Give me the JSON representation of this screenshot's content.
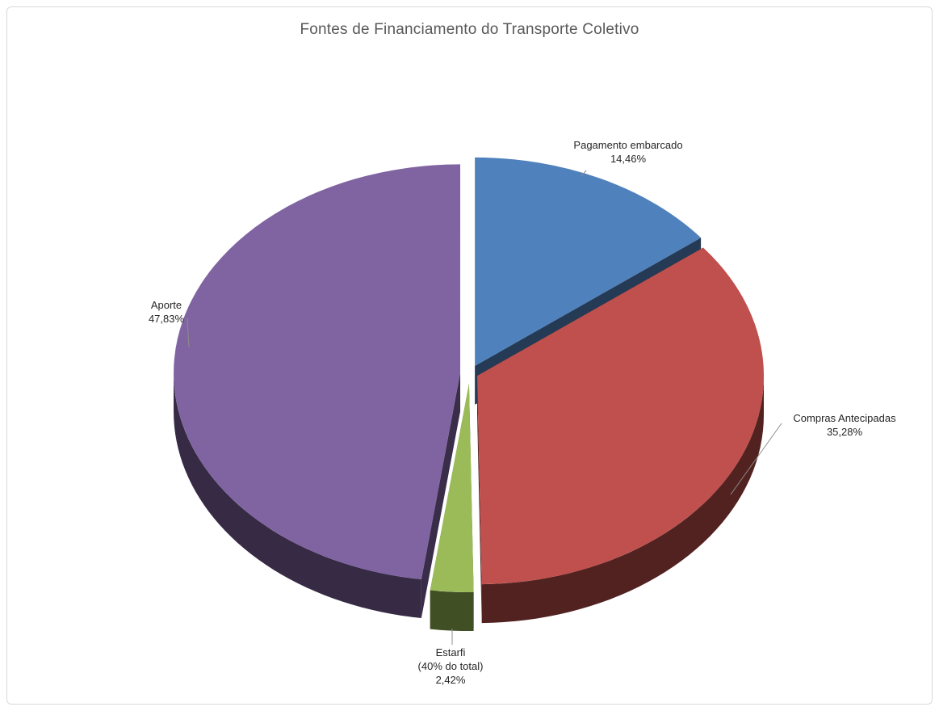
{
  "chart_data": {
    "type": "pie",
    "title": "Fontes de Financiamento do Transporte Coletivo",
    "slices": [
      {
        "label_lines": [
          "Pagamento embarcado"
        ],
        "value": 14.46,
        "value_label": "14,46%",
        "color": "#4f81bd"
      },
      {
        "label_lines": [
          "Compras Antecipadas"
        ],
        "value": 35.28,
        "value_label": "35,28%",
        "color": "#c0504d"
      },
      {
        "label_lines": [
          "Estarfi",
          "(40% do total)"
        ],
        "value": 2.42,
        "value_label": "2,42%",
        "color": "#9bbb59"
      },
      {
        "label_lines": [
          "Aporte"
        ],
        "value": 47.83,
        "value_label": "47,83%",
        "color": "#8064a2"
      }
    ],
    "style": "3d-exploded",
    "legend": "none"
  }
}
